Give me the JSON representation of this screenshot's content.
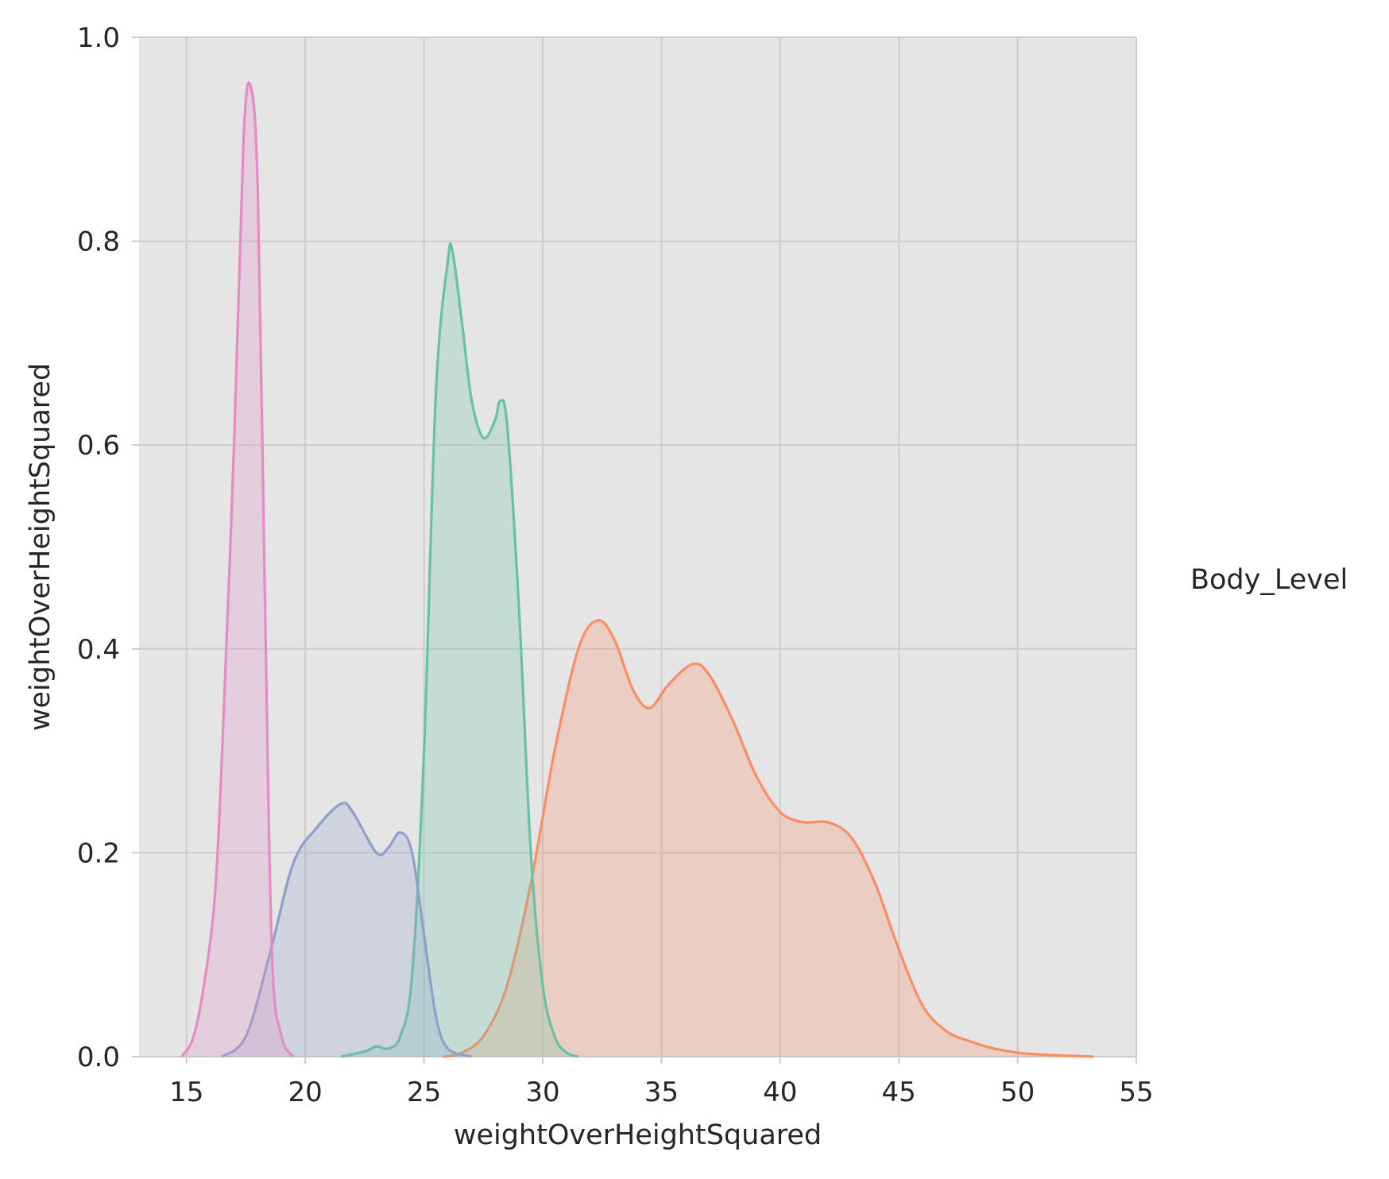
{
  "chart_data": {
    "type": "area",
    "title": "",
    "xlabel": "weightOverHeightSquared",
    "ylabel": "weightOverHeightSquared",
    "xlim": [
      13,
      55
    ],
    "ylim": [
      0,
      1.0
    ],
    "xticks": [
      "15",
      "20",
      "25",
      "30",
      "35",
      "40",
      "45",
      "50",
      "55"
    ],
    "yticks": [
      "0.0",
      "0.2",
      "0.4",
      "0.6",
      "0.8",
      "1.0"
    ],
    "grid": true,
    "background": "#e5e5e5",
    "grid_color": "#cccccc",
    "legend_title": "Body_Level",
    "legend_position": "right",
    "series": [
      {
        "color": "#fc8d62",
        "x": [
          25.8,
          26.5,
          27.5,
          28.5,
          29.5,
          30.5,
          31.5,
          32.3,
          33,
          33.8,
          34.5,
          35.3,
          36.3,
          37,
          38,
          39,
          40,
          41,
          42,
          43,
          44,
          45,
          46,
          47,
          48,
          49,
          50,
          51,
          52,
          53.2
        ],
        "y": [
          0.0,
          0.003,
          0.02,
          0.07,
          0.17,
          0.3,
          0.4,
          0.428,
          0.41,
          0.36,
          0.342,
          0.365,
          0.385,
          0.375,
          0.33,
          0.275,
          0.24,
          0.23,
          0.23,
          0.215,
          0.17,
          0.105,
          0.05,
          0.025,
          0.015,
          0.008,
          0.004,
          0.002,
          0.001,
          0.0
        ]
      },
      {
        "color": "#66c2a5",
        "x": [
          21.5,
          22.5,
          23,
          23.5,
          24,
          24.5,
          25,
          25.5,
          26,
          26.2,
          26.6,
          27,
          27.5,
          28,
          28.2,
          28.5,
          29,
          29.5,
          30,
          30.5,
          31,
          31.5
        ],
        "y": [
          0.0,
          0.005,
          0.01,
          0.008,
          0.02,
          0.08,
          0.3,
          0.65,
          0.78,
          0.79,
          0.72,
          0.645,
          0.607,
          0.625,
          0.643,
          0.62,
          0.44,
          0.2,
          0.07,
          0.02,
          0.004,
          0.0
        ]
      },
      {
        "color": "#8da0cb",
        "x": [
          16.5,
          17.5,
          18.5,
          19.5,
          20.5,
          21.5,
          22,
          23,
          23.5,
          24,
          24.5,
          25,
          25.5,
          26,
          27
        ],
        "y": [
          0.0,
          0.02,
          0.1,
          0.19,
          0.225,
          0.248,
          0.24,
          0.2,
          0.205,
          0.22,
          0.2,
          0.12,
          0.04,
          0.008,
          0.0
        ]
      },
      {
        "color": "#e78ac3",
        "x": [
          14.8,
          15.3,
          15.8,
          16.2,
          16.5,
          17.0,
          17.4,
          17.7,
          18.0,
          18.3,
          18.6,
          19.0,
          19.5
        ],
        "y": [
          0.0,
          0.02,
          0.08,
          0.16,
          0.3,
          0.6,
          0.9,
          0.952,
          0.85,
          0.45,
          0.1,
          0.02,
          0.0
        ]
      }
    ]
  }
}
